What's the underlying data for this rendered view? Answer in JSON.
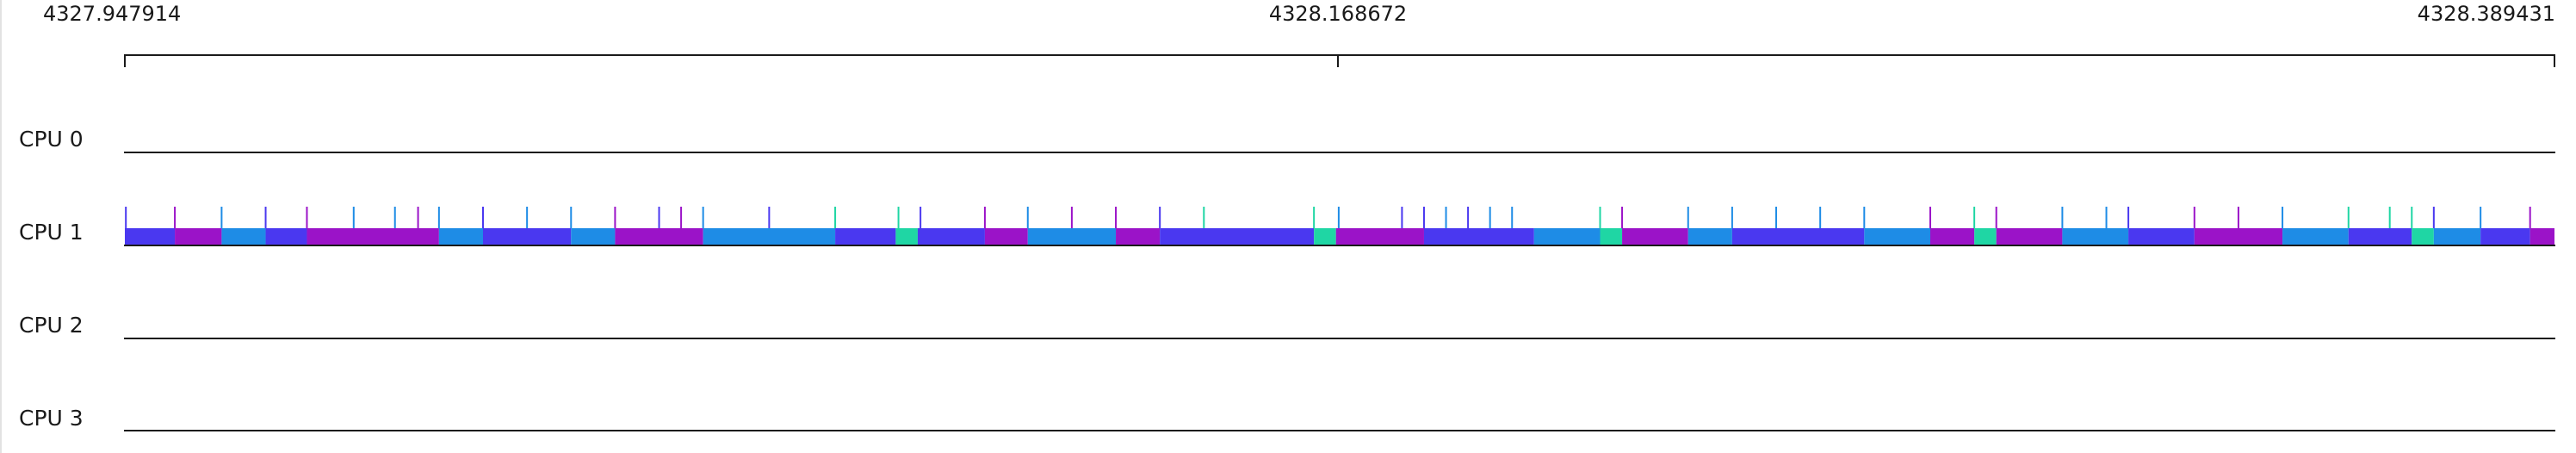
{
  "timeline": {
    "start_label": "4327.947914",
    "mid_label": "4328.168672",
    "end_label": "4328.389431"
  },
  "cpus": [
    {
      "label": "CPU 0"
    },
    {
      "label": "CPU 1"
    },
    {
      "label": "CPU 2"
    },
    {
      "label": "CPU 3"
    }
  ],
  "colors": {
    "axis": "#1a1a1a",
    "task_a": "#9b13c8",
    "task_b": "#4a38f0",
    "task_c": "#1e8ce6",
    "task_d": "#1fd6a4"
  },
  "cpu1_tasks": {
    "start": 4327.947914,
    "end": 4328.389431,
    "segments": [
      [
        4327.947914,
        4327.957,
        "task_b"
      ],
      [
        4327.957,
        4327.9655,
        "task_a"
      ],
      [
        4327.9655,
        4327.9735,
        "task_c"
      ],
      [
        4327.9735,
        4327.981,
        "task_b"
      ],
      [
        4327.981,
        4328.005,
        "task_a"
      ],
      [
        4328.005,
        4328.013,
        "task_c"
      ],
      [
        4328.013,
        4328.029,
        "task_b"
      ],
      [
        4328.029,
        4328.037,
        "task_c"
      ],
      [
        4328.037,
        4328.053,
        "task_a"
      ],
      [
        4328.053,
        4328.077,
        "task_c"
      ],
      [
        4328.077,
        4328.088,
        "task_b"
      ],
      [
        4328.088,
        4328.092,
        "task_d"
      ],
      [
        4328.092,
        4328.1042,
        "task_b"
      ],
      [
        4328.1042,
        4328.112,
        "task_a"
      ],
      [
        4328.112,
        4328.128,
        "task_c"
      ],
      [
        4328.128,
        4328.136,
        "task_a"
      ],
      [
        4328.136,
        4328.164,
        "task_b"
      ],
      [
        4328.164,
        4328.168,
        "task_d"
      ],
      [
        4328.168,
        4328.184,
        "task_a"
      ],
      [
        4328.184,
        4328.204,
        "task_b"
      ],
      [
        4328.204,
        4328.216,
        "task_c"
      ],
      [
        4328.216,
        4328.22,
        "task_d"
      ],
      [
        4328.22,
        4328.232,
        "task_a"
      ],
      [
        4328.232,
        4328.24,
        "task_c"
      ],
      [
        4328.24,
        4328.264,
        "task_b"
      ],
      [
        4328.264,
        4328.276,
        "task_c"
      ],
      [
        4328.276,
        4328.284,
        "task_a"
      ],
      [
        4328.284,
        4328.288,
        "task_d"
      ],
      [
        4328.288,
        4328.3,
        "task_a"
      ],
      [
        4328.3,
        4328.312,
        "task_c"
      ],
      [
        4328.312,
        4328.324,
        "task_b"
      ],
      [
        4328.324,
        4328.34,
        "task_a"
      ],
      [
        4328.34,
        4328.352,
        "task_c"
      ],
      [
        4328.352,
        4328.3635,
        "task_b"
      ],
      [
        4328.3635,
        4328.3675,
        "task_d"
      ],
      [
        4328.3675,
        4328.376,
        "task_c"
      ],
      [
        4328.376,
        4328.385,
        "task_b"
      ],
      [
        4328.385,
        4328.389431,
        "task_a"
      ]
    ],
    "events": [
      [
        4327.9481,
        "task_b"
      ],
      [
        4327.957,
        "task_a"
      ],
      [
        4327.9655,
        "task_c"
      ],
      [
        4327.9735,
        "task_b"
      ],
      [
        4327.981,
        "task_a"
      ],
      [
        4327.9895,
        "task_c"
      ],
      [
        4327.997,
        "task_c"
      ],
      [
        4328.0012,
        "task_a"
      ],
      [
        4328.005,
        "task_c"
      ],
      [
        4328.013,
        "task_b"
      ],
      [
        4328.021,
        "task_c"
      ],
      [
        4328.029,
        "task_c"
      ],
      [
        4328.037,
        "task_a"
      ],
      [
        4328.045,
        "task_b"
      ],
      [
        4328.049,
        "task_a"
      ],
      [
        4328.053,
        "task_c"
      ],
      [
        4328.065,
        "task_b"
      ],
      [
        4328.077,
        "task_d"
      ],
      [
        4328.0885,
        "task_d"
      ],
      [
        4328.0925,
        "task_b"
      ],
      [
        4328.1042,
        "task_a"
      ],
      [
        4328.112,
        "task_c"
      ],
      [
        4328.12,
        "task_a"
      ],
      [
        4328.128,
        "task_a"
      ],
      [
        4328.136,
        "task_b"
      ],
      [
        4328.144,
        "task_d"
      ],
      [
        4328.164,
        "task_d"
      ],
      [
        4328.1685,
        "task_c"
      ],
      [
        4328.18,
        "task_b"
      ],
      [
        4328.184,
        "task_b"
      ],
      [
        4328.188,
        "task_c"
      ],
      [
        4328.192,
        "task_b"
      ],
      [
        4328.196,
        "task_c"
      ],
      [
        4328.2,
        "task_c"
      ],
      [
        4328.216,
        "task_d"
      ],
      [
        4328.22,
        "task_a"
      ],
      [
        4328.232,
        "task_c"
      ],
      [
        4328.24,
        "task_c"
      ],
      [
        4328.248,
        "task_c"
      ],
      [
        4328.256,
        "task_c"
      ],
      [
        4328.264,
        "task_c"
      ],
      [
        4328.276,
        "task_a"
      ],
      [
        4328.284,
        "task_d"
      ],
      [
        4328.288,
        "task_a"
      ],
      [
        4328.3,
        "task_c"
      ],
      [
        4328.308,
        "task_c"
      ],
      [
        4328.312,
        "task_b"
      ],
      [
        4328.324,
        "task_a"
      ],
      [
        4328.332,
        "task_a"
      ],
      [
        4328.34,
        "task_c"
      ],
      [
        4328.352,
        "task_d"
      ],
      [
        4328.3595,
        "task_d"
      ],
      [
        4328.3635,
        "task_d"
      ],
      [
        4328.3675,
        "task_b"
      ],
      [
        4328.376,
        "task_c"
      ],
      [
        4328.385,
        "task_a"
      ]
    ]
  }
}
